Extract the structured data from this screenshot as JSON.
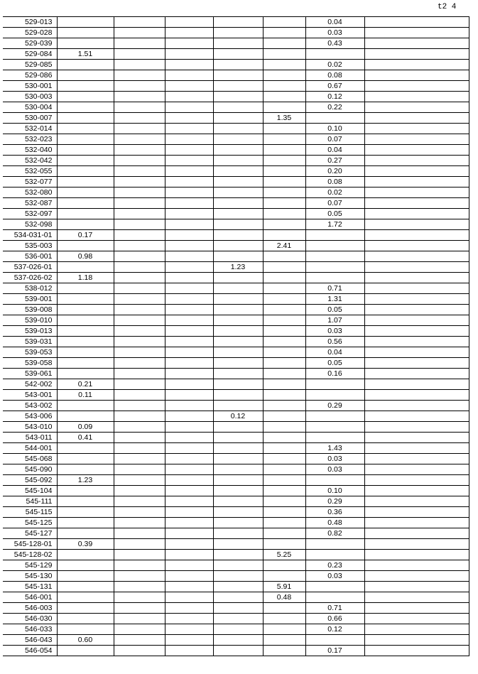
{
  "header": {
    "page": "t2 4"
  },
  "table": {
    "rows": [
      [
        "529-013",
        null,
        null,
        null,
        null,
        null,
        "0.04",
        null
      ],
      [
        "529-028",
        null,
        null,
        null,
        null,
        null,
        "0.03",
        null
      ],
      [
        "529-039",
        null,
        null,
        null,
        null,
        null,
        "0.43",
        null
      ],
      [
        "529-084",
        "1.51",
        null,
        null,
        null,
        null,
        null,
        null
      ],
      [
        "529-085",
        null,
        null,
        null,
        null,
        null,
        "0.02",
        null
      ],
      [
        "529-086",
        null,
        null,
        null,
        null,
        null,
        "0.08",
        null
      ],
      [
        "530-001",
        null,
        null,
        null,
        null,
        null,
        "0.67",
        null
      ],
      [
        "530-003",
        null,
        null,
        null,
        null,
        null,
        "0.12",
        null
      ],
      [
        "530-004",
        null,
        null,
        null,
        null,
        null,
        "0.22",
        null
      ],
      [
        "530-007",
        null,
        null,
        null,
        null,
        "1.35",
        null,
        null
      ],
      [
        "532-014",
        null,
        null,
        null,
        null,
        null,
        "0.10",
        null
      ],
      [
        "532-023",
        null,
        null,
        null,
        null,
        null,
        "0.07",
        null
      ],
      [
        "532-040",
        null,
        null,
        null,
        null,
        null,
        "0.04",
        null
      ],
      [
        "532-042",
        null,
        null,
        null,
        null,
        null,
        "0.27",
        null
      ],
      [
        "532-055",
        null,
        null,
        null,
        null,
        null,
        "0.20",
        null
      ],
      [
        "532-077",
        null,
        null,
        null,
        null,
        null,
        "0.08",
        null
      ],
      [
        "532-080",
        null,
        null,
        null,
        null,
        null,
        "0.02",
        null
      ],
      [
        "532-087",
        null,
        null,
        null,
        null,
        null,
        "0.07",
        null
      ],
      [
        "532-097",
        null,
        null,
        null,
        null,
        null,
        "0.05",
        null
      ],
      [
        "532-098",
        null,
        null,
        null,
        null,
        null,
        "1.72",
        null
      ],
      [
        "534-031-01",
        "0.17",
        null,
        null,
        null,
        null,
        null,
        null
      ],
      [
        "535-003",
        null,
        null,
        null,
        null,
        "2.41",
        null,
        null
      ],
      [
        "536-001",
        "0.98",
        null,
        null,
        null,
        null,
        null,
        null
      ],
      [
        "537-026-01",
        null,
        null,
        null,
        "1.23",
        null,
        null,
        null
      ],
      [
        "537-026-02",
        "1.18",
        null,
        null,
        null,
        null,
        null,
        null
      ],
      [
        "538-012",
        null,
        null,
        null,
        null,
        null,
        "0.71",
        null
      ],
      [
        "539-001",
        null,
        null,
        null,
        null,
        null,
        "1.31",
        null
      ],
      [
        "539-008",
        null,
        null,
        null,
        null,
        null,
        "0.05",
        null
      ],
      [
        "539-010",
        null,
        null,
        null,
        null,
        null,
        "1.07",
        null
      ],
      [
        "539-013",
        null,
        null,
        null,
        null,
        null,
        "0.03",
        null
      ],
      [
        "539-031",
        null,
        null,
        null,
        null,
        null,
        "0.56",
        null
      ],
      [
        "539-053",
        null,
        null,
        null,
        null,
        null,
        "0.04",
        null
      ],
      [
        "539-058",
        null,
        null,
        null,
        null,
        null,
        "0.05",
        null
      ],
      [
        "539-061",
        null,
        null,
        null,
        null,
        null,
        "0.16",
        null
      ],
      [
        "542-002",
        "0.21",
        null,
        null,
        null,
        null,
        null,
        null
      ],
      [
        "543-001",
        "0.11",
        null,
        null,
        null,
        null,
        null,
        null
      ],
      [
        "543-002",
        null,
        null,
        null,
        null,
        null,
        "0.29",
        null
      ],
      [
        "543-006",
        null,
        null,
        null,
        "0.12",
        null,
        null,
        null
      ],
      [
        "543-010",
        "0.09",
        null,
        null,
        null,
        null,
        null,
        null
      ],
      [
        "543-011",
        "0.41",
        null,
        null,
        null,
        null,
        null,
        null
      ],
      [
        "544-001",
        null,
        null,
        null,
        null,
        null,
        "1.43",
        null
      ],
      [
        "545-068",
        null,
        null,
        null,
        null,
        null,
        "0.03",
        null
      ],
      [
        "545-090",
        null,
        null,
        null,
        null,
        null,
        "0.03",
        null
      ],
      [
        "545-092",
        "1.23",
        null,
        null,
        null,
        null,
        null,
        null
      ],
      [
        "545-104",
        null,
        null,
        null,
        null,
        null,
        "0.10",
        null
      ],
      [
        "545-111",
        null,
        null,
        null,
        null,
        null,
        "0.29",
        null
      ],
      [
        "545-115",
        null,
        null,
        null,
        null,
        null,
        "0.36",
        null
      ],
      [
        "545-125",
        null,
        null,
        null,
        null,
        null,
        "0.48",
        null
      ],
      [
        "545-127",
        null,
        null,
        null,
        null,
        null,
        "0.82",
        null
      ],
      [
        "545-128-01",
        "0.39",
        null,
        null,
        null,
        null,
        null,
        null
      ],
      [
        "545-128-02",
        null,
        null,
        null,
        null,
        "5.25",
        null,
        null
      ],
      [
        "545-129",
        null,
        null,
        null,
        null,
        null,
        "0.23",
        null
      ],
      [
        "545-130",
        null,
        null,
        null,
        null,
        null,
        "0.03",
        null
      ],
      [
        "545-131",
        null,
        null,
        null,
        null,
        "5.91",
        null,
        null
      ],
      [
        "546-001",
        null,
        null,
        null,
        null,
        "0.48",
        null,
        null
      ],
      [
        "546-003",
        null,
        null,
        null,
        null,
        null,
        "0.71",
        null
      ],
      [
        "546-030",
        null,
        null,
        null,
        null,
        null,
        "0.66",
        null
      ],
      [
        "546-033",
        null,
        null,
        null,
        null,
        null,
        "0.12",
        null
      ],
      [
        "546-043",
        "0.60",
        null,
        null,
        null,
        null,
        null,
        null
      ],
      [
        "546-054",
        null,
        null,
        null,
        null,
        null,
        "0.17",
        null
      ]
    ]
  }
}
